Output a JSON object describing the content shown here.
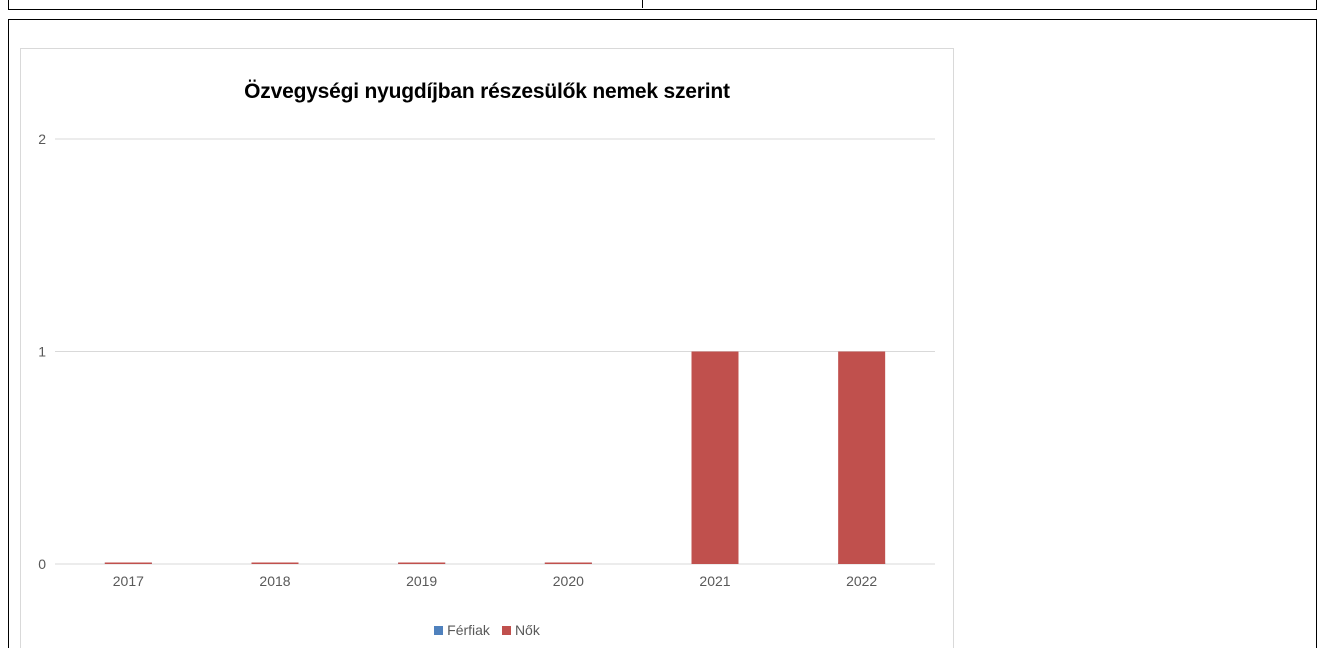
{
  "chart_data": {
    "type": "bar",
    "title": "Özvegységi nyugdíjban részesülők nemek szerint",
    "categories": [
      "2017",
      "2018",
      "2019",
      "2020",
      "2021",
      "2022"
    ],
    "series": [
      {
        "name": "Férfiak",
        "color": "#4f81bd",
        "values": [
          0,
          0,
          0,
          0,
          0,
          0
        ]
      },
      {
        "name": "Nők",
        "color": "#c0504d",
        "values": [
          0,
          0,
          0,
          0,
          1,
          1
        ]
      }
    ],
    "stacked": true,
    "ylim": [
      0,
      2
    ],
    "yticks": [
      "0",
      "1",
      "2"
    ],
    "grid": true,
    "legend": "bottom-center"
  }
}
